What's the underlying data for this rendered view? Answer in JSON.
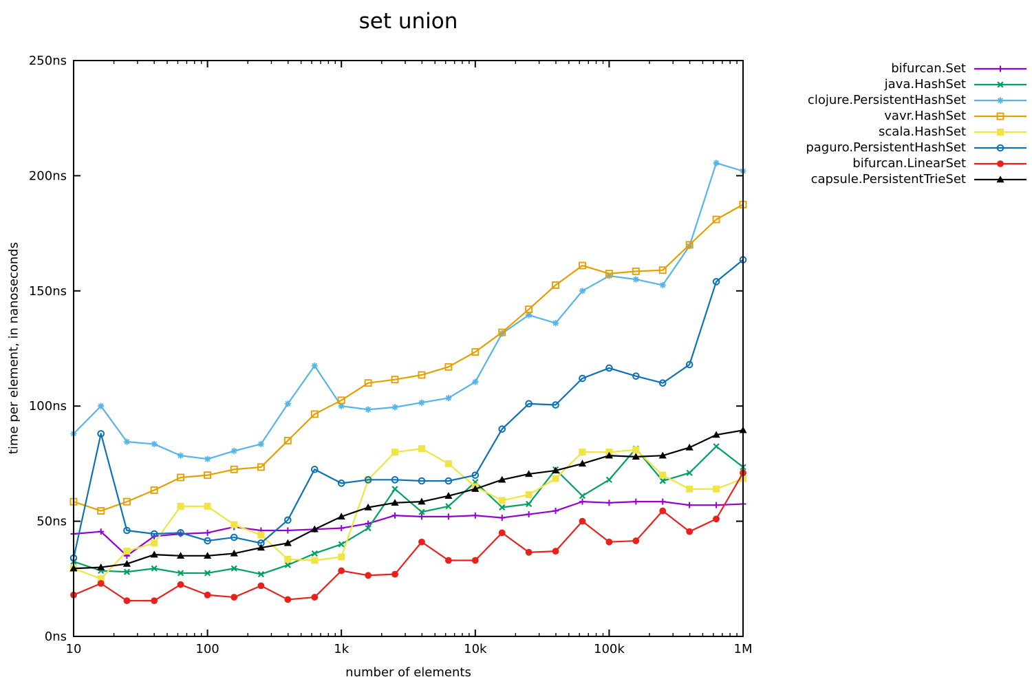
{
  "title": "set union",
  "axes": {
    "x_label": "number of elements",
    "y_label": "time per element, in nanoseconds",
    "x_ticks": [
      {
        "label": "10",
        "value": 10
      },
      {
        "label": "100",
        "value": 100
      },
      {
        "label": "1k",
        "value": 1000
      },
      {
        "label": "10k",
        "value": 10000
      },
      {
        "label": "100k",
        "value": 100000
      },
      {
        "label": "1M",
        "value": 1000000
      }
    ],
    "y_ticks": [
      {
        "label": "0ns",
        "value": 0
      },
      {
        "label": "50ns",
        "value": 50
      },
      {
        "label": "100ns",
        "value": 100
      },
      {
        "label": "150ns",
        "value": 150
      },
      {
        "label": "200ns",
        "value": 200
      },
      {
        "label": "250ns",
        "value": 250
      }
    ]
  },
  "chart_data": {
    "type": "line",
    "title": "set union",
    "xlabel": "number of elements",
    "ylabel": "time per element, in nanoseconds",
    "xscale": "log",
    "xlim": [
      10,
      1000000
    ],
    "ylim": [
      0,
      250
    ],
    "grid": false,
    "legend_position": "outside-top-right",
    "x": [
      10,
      16,
      25,
      40,
      63,
      100,
      158,
      251,
      398,
      631,
      1000,
      1585,
      2512,
      3981,
      6310,
      10000,
      15849,
      25119,
      39811,
      63096,
      100000,
      158489,
      251189,
      398107,
      630957,
      1000000
    ],
    "series": [
      {
        "name": "bifurcan.Set",
        "color": "#9400d3",
        "marker": "plus",
        "values": [
          44.5,
          45.5,
          35,
          43.5,
          44.5,
          45,
          47.5,
          46,
          46,
          46.5,
          47,
          49,
          52.5,
          52,
          52,
          52.5,
          51.5,
          53,
          54.5,
          58.5,
          58,
          58.5,
          58.5,
          57,
          57,
          57.5
        ]
      },
      {
        "name": "java.HashSet",
        "color": "#00a064",
        "marker": "x",
        "values": [
          32.5,
          28.5,
          28,
          29.5,
          27.5,
          27.5,
          29.5,
          27,
          31,
          36,
          40,
          47,
          64,
          54,
          56.5,
          67,
          56,
          57.5,
          72.5,
          61,
          68,
          81.5,
          67.5,
          71,
          82.5,
          73.5
        ]
      },
      {
        "name": "clojure.PersistentHashSet",
        "color": "#56b4e9",
        "marker": "asterisk",
        "values": [
          88,
          100,
          84.5,
          83.5,
          78.5,
          77,
          80.5,
          83.5,
          101,
          117.5,
          100,
          98.5,
          99.5,
          101.5,
          103.5,
          110.5,
          131.5,
          139.5,
          136,
          150,
          156.5,
          155,
          152.5,
          169.5,
          205.5,
          202
        ]
      },
      {
        "name": "vavr.HashSet",
        "color": "#e69f00",
        "marker": "square-open",
        "values": [
          58.5,
          54.5,
          58.5,
          63.5,
          69,
          70,
          72.5,
          73.5,
          85,
          96.5,
          102.5,
          110,
          111.5,
          113.5,
          117,
          123.5,
          132,
          142,
          152.5,
          161,
          157.5,
          158.5,
          159,
          170,
          181,
          187.5
        ]
      },
      {
        "name": "scala.HashSet",
        "color": "#f0e442",
        "marker": "square-filled",
        "values": [
          29.5,
          25,
          37,
          40.5,
          56.5,
          56.5,
          48.5,
          44,
          33.5,
          33,
          34.5,
          68,
          80,
          81.5,
          75,
          65,
          59,
          61.5,
          68.5,
          80,
          80,
          81,
          70,
          64,
          64,
          68.5
        ]
      },
      {
        "name": "paguro.PersistentHashSet",
        "color": "#0d72b5",
        "marker": "circle-open",
        "values": [
          34,
          88,
          46,
          44.5,
          45,
          41.5,
          43,
          40.5,
          50.5,
          72.5,
          66.5,
          68,
          68,
          67.5,
          67.5,
          70,
          90,
          101,
          100.5,
          112,
          116.5,
          113,
          110,
          118,
          154,
          163.5
        ]
      },
      {
        "name": "bifurcan.LinearSet",
        "color": "#e8211a",
        "marker": "circle-filled",
        "values": [
          18,
          23,
          15.5,
          15.5,
          22.5,
          18,
          17,
          22,
          16,
          17,
          28.5,
          26.5,
          27,
          41,
          33,
          33,
          45,
          36.5,
          37,
          50,
          41,
          41.5,
          54.5,
          45.5,
          51,
          71
        ]
      },
      {
        "name": "capsule.PersistentTrieSet",
        "color": "#000000",
        "marker": "triangle-filled",
        "values": [
          29.5,
          30,
          31.5,
          35.5,
          35,
          35,
          36,
          38.5,
          40.5,
          46.5,
          52,
          56,
          58,
          58.5,
          61,
          64,
          68,
          70.5,
          72,
          75,
          78.5,
          78,
          78.5,
          82,
          87.5,
          89.5
        ]
      }
    ]
  }
}
